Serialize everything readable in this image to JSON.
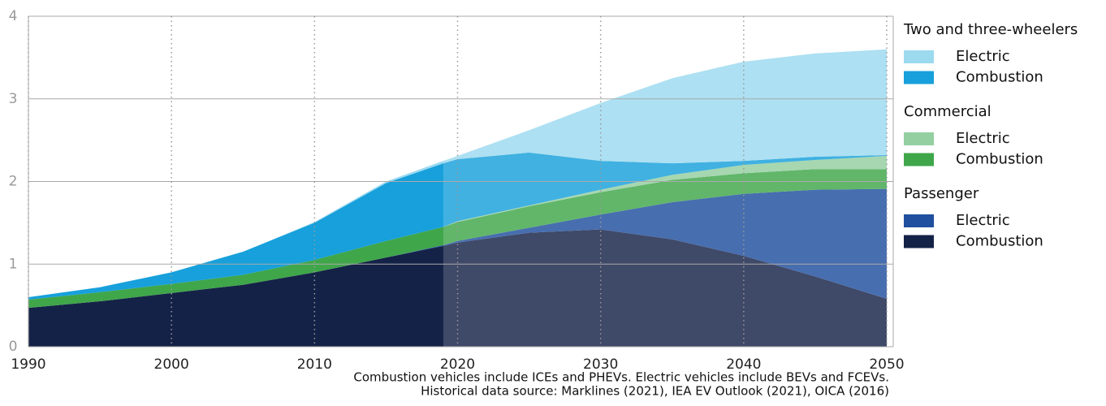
{
  "chart_data": {
    "type": "stacked_area",
    "x": [
      1990,
      1995,
      2000,
      2005,
      2010,
      2015,
      2019,
      2020,
      2025,
      2030,
      2035,
      2040,
      2045,
      2050
    ],
    "series": [
      {
        "group": "Passenger",
        "name": "Combustion",
        "color": "#152247",
        "values": [
          0.47,
          0.55,
          0.65,
          0.75,
          0.9,
          1.08,
          1.22,
          1.26,
          1.38,
          1.42,
          1.3,
          1.1,
          0.85,
          0.58
        ]
      },
      {
        "group": "Passenger",
        "name": "Electric",
        "color": "#1f4f9e",
        "values": [
          0,
          0,
          0,
          0,
          0,
          0,
          0.01,
          0.02,
          0.06,
          0.18,
          0.45,
          0.75,
          1.05,
          1.33
        ]
      },
      {
        "group": "Commercial",
        "name": "Combustion",
        "color": "#3fa64a",
        "values": [
          0.1,
          0.11,
          0.11,
          0.12,
          0.15,
          0.2,
          0.22,
          0.23,
          0.26,
          0.27,
          0.27,
          0.25,
          0.25,
          0.24
        ]
      },
      {
        "group": "Commercial",
        "name": "Electric",
        "color": "#93cfa0",
        "values": [
          0,
          0,
          0,
          0,
          0,
          0,
          0,
          0.01,
          0.01,
          0.03,
          0.06,
          0.1,
          0.11,
          0.16
        ]
      },
      {
        "group": "Two and three-wheelers",
        "name": "Combustion",
        "color": "#17a0db",
        "values": [
          0.03,
          0.06,
          0.14,
          0.28,
          0.45,
          0.7,
          0.77,
          0.75,
          0.64,
          0.35,
          0.14,
          0.05,
          0.04,
          0.01
        ]
      },
      {
        "group": "Two and three-wheelers",
        "name": "Electric",
        "color": "#9cdaf0",
        "values": [
          0,
          0,
          0,
          0,
          0.01,
          0.02,
          0.03,
          0.04,
          0.27,
          0.7,
          1.03,
          1.2,
          1.25,
          1.28
        ]
      }
    ],
    "historical_until": 2019,
    "xlim": [
      1990,
      2050
    ],
    "xticks": [
      1990,
      2000,
      2010,
      2020,
      2030,
      2040,
      2050
    ],
    "ylim": [
      0,
      4
    ],
    "yticks": [
      0,
      1,
      2,
      3,
      4
    ],
    "notes": [
      "Combustion vehicles include ICEs and PHEVs. Electric vehicles include BEVs and FCEVs.",
      "Historical data source: Marklines (2021), IEA EV Outlook (2021), OICA (2016)"
    ]
  }
}
